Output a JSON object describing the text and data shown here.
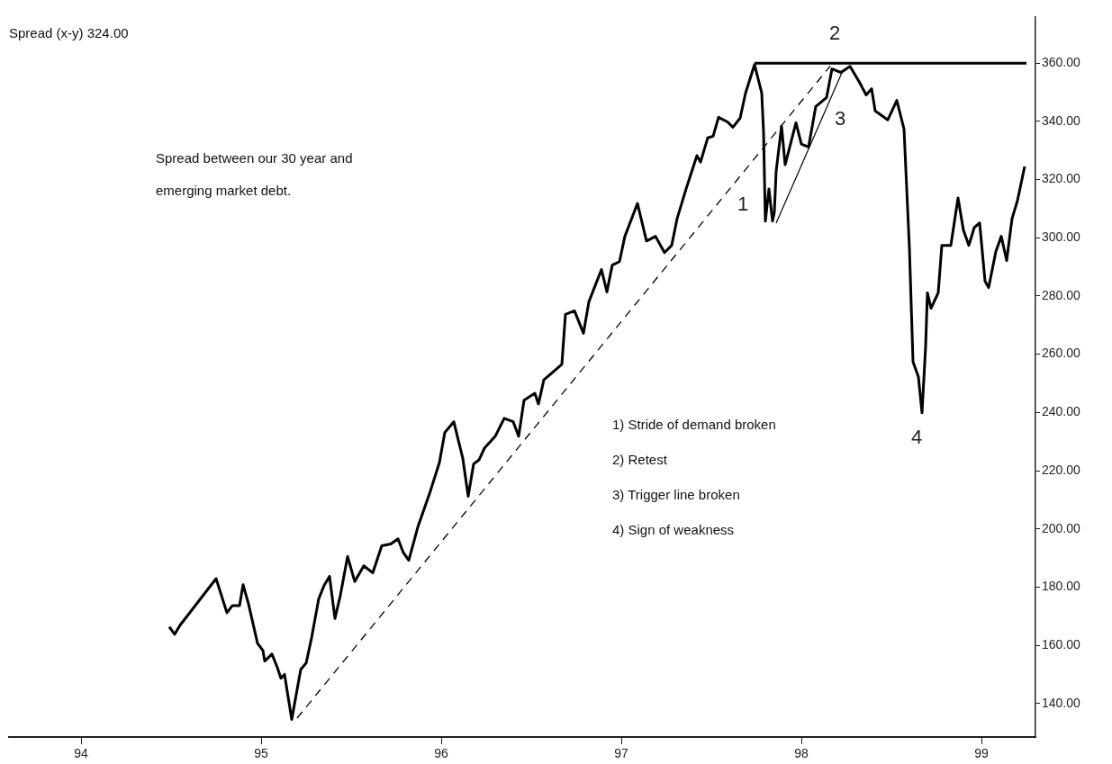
{
  "chart_data": {
    "type": "line",
    "title": "Spread (x-y) 324.00",
    "xlim": [
      1993.6,
      1999.3
    ],
    "ylim": [
      128.5,
      376
    ],
    "xticks": [
      {
        "value": 1994,
        "label": "94"
      },
      {
        "value": 1995,
        "label": "95"
      },
      {
        "value": 1996,
        "label": "96"
      },
      {
        "value": 1997,
        "label": "97"
      },
      {
        "value": 1998,
        "label": "98"
      },
      {
        "value": 1999,
        "label": "99"
      }
    ],
    "yticks": [
      {
        "value": 140,
        "label": "140.00"
      },
      {
        "value": 160,
        "label": "160.00"
      },
      {
        "value": 180,
        "label": "180.00"
      },
      {
        "value": 200,
        "label": "200.00"
      },
      {
        "value": 220,
        "label": "220.00"
      },
      {
        "value": 240,
        "label": "240.00"
      },
      {
        "value": 260,
        "label": "260.00"
      },
      {
        "value": 280,
        "label": "280.00"
      },
      {
        "value": 300,
        "label": "300.00"
      },
      {
        "value": 320,
        "label": "320.00"
      },
      {
        "value": 340,
        "label": "340.00"
      },
      {
        "value": 360,
        "label": "360.00"
      }
    ],
    "grid": false,
    "legend": false,
    "marker": "none",
    "series": [
      {
        "color": "#000000",
        "line_style": "solid",
        "x": [
          1994.49,
          1994.52,
          1994.55,
          1994.75,
          1994.81,
          1994.84,
          1994.88,
          1994.9,
          1994.93,
          1994.98,
          1995.01,
          1995.02,
          1995.06,
          1995.09,
          1995.11,
          1995.13,
          1995.17,
          1995.22,
          1995.25,
          1995.28,
          1995.32,
          1995.35,
          1995.38,
          1995.41,
          1995.44,
          1995.48,
          1995.52,
          1995.57,
          1995.62,
          1995.67,
          1995.72,
          1995.76,
          1995.79,
          1995.82,
          1995.87,
          1995.94,
          1995.99,
          1996.02,
          1996.07,
          1996.12,
          1996.15,
          1996.18,
          1996.21,
          1996.24,
          1996.3,
          1996.35,
          1996.4,
          1996.43,
          1996.46,
          1996.52,
          1996.54,
          1996.57,
          1996.64,
          1996.67,
          1996.69,
          1996.74,
          1996.79,
          1996.82,
          1996.89,
          1996.92,
          1996.95,
          1996.99,
          1997.02,
          1997.09,
          1997.14,
          1997.19,
          1997.24,
          1997.28,
          1997.31,
          1997.36,
          1997.42,
          1997.44,
          1997.48,
          1997.51,
          1997.54,
          1997.59,
          1997.62,
          1997.66,
          1997.69,
          1997.74,
          1997.78,
          1997.79,
          1997.8,
          1997.82,
          1997.84,
          1997.85,
          1997.86,
          1997.89,
          1997.91,
          1997.97,
          1998.0,
          1998.04,
          1998.08,
          1998.14,
          1998.17,
          1998.22,
          1998.27,
          1998.32,
          1998.36,
          1998.39,
          1998.41,
          1998.48,
          1998.53,
          1998.57,
          1998.6,
          1998.62,
          1998.65,
          1998.67,
          1998.69,
          1998.7,
          1998.72,
          1998.76,
          1998.78,
          1998.83,
          1998.87,
          1998.9,
          1998.93,
          1998.96,
          1998.99,
          1999.02,
          1999.04,
          1999.08,
          1999.11,
          1999.14,
          1999.17,
          1999.2,
          1999.24
        ],
        "values": [
          166.3,
          163.8,
          166.9,
          182.9,
          171.2,
          173.6,
          173.6,
          180.8,
          174.2,
          160.7,
          158.2,
          154.6,
          157,
          152.4,
          148.7,
          150,
          134.5,
          151.7,
          153.9,
          162.5,
          176,
          180.6,
          183.7,
          169.2,
          177.2,
          190.5,
          181.9,
          187.3,
          184.9,
          194.2,
          194.8,
          196.6,
          191.8,
          189.2,
          200.6,
          213,
          222.8,
          233.1,
          236.8,
          224.2,
          211.2,
          222.3,
          223.7,
          227.7,
          231.8,
          238,
          236.8,
          231.8,
          244.2,
          246.6,
          242.9,
          251.2,
          254.9,
          256.5,
          273.7,
          274.9,
          267.2,
          278,
          289.1,
          281.4,
          290.6,
          291.8,
          300.5,
          311.8,
          298.9,
          300.5,
          294.9,
          297.4,
          306.6,
          316.8,
          328.2,
          326,
          334.3,
          334.9,
          341.4,
          339.8,
          338,
          341.1,
          349.7,
          359.5,
          349.7,
          336.5,
          305.7,
          316.8,
          305.7,
          308.8,
          322.9,
          338.3,
          325.1,
          339.5,
          332.2,
          331.2,
          345.1,
          348.2,
          358,
          356.8,
          358.9,
          353.7,
          349.1,
          351.2,
          343.6,
          340.5,
          347.2,
          337.4,
          296.5,
          257.4,
          252.2,
          239.9,
          262.6,
          281.1,
          275.8,
          281.1,
          297.4,
          297.4,
          313.7,
          302.6,
          297.4,
          303.5,
          305.1,
          285.1,
          282.9,
          295.3,
          300.5,
          292.2,
          306.6,
          312.8,
          324.5
        ]
      },
      {
        "color": "#000000",
        "line_style": "dashed",
        "x": [
          1995.2,
          1998.16
        ],
        "values": [
          135,
          359
        ]
      },
      {
        "color": "#000000",
        "line_style": "solid",
        "x": [
          1997.86,
          1998.23
        ],
        "values": [
          305,
          357.4
        ]
      },
      {
        "color": "#000000",
        "line_style": "solid",
        "x": [
          1997.74,
          1999.25
        ],
        "values": [
          360,
          360
        ]
      }
    ],
    "annotations": [
      "Spread between our 30 year and emerging market debt.",
      "1) Stride of demand broken",
      "2) Retest",
      "3) Trigger line broken",
      "4) Sign of weakness",
      "1",
      "2",
      "3",
      "4"
    ]
  }
}
